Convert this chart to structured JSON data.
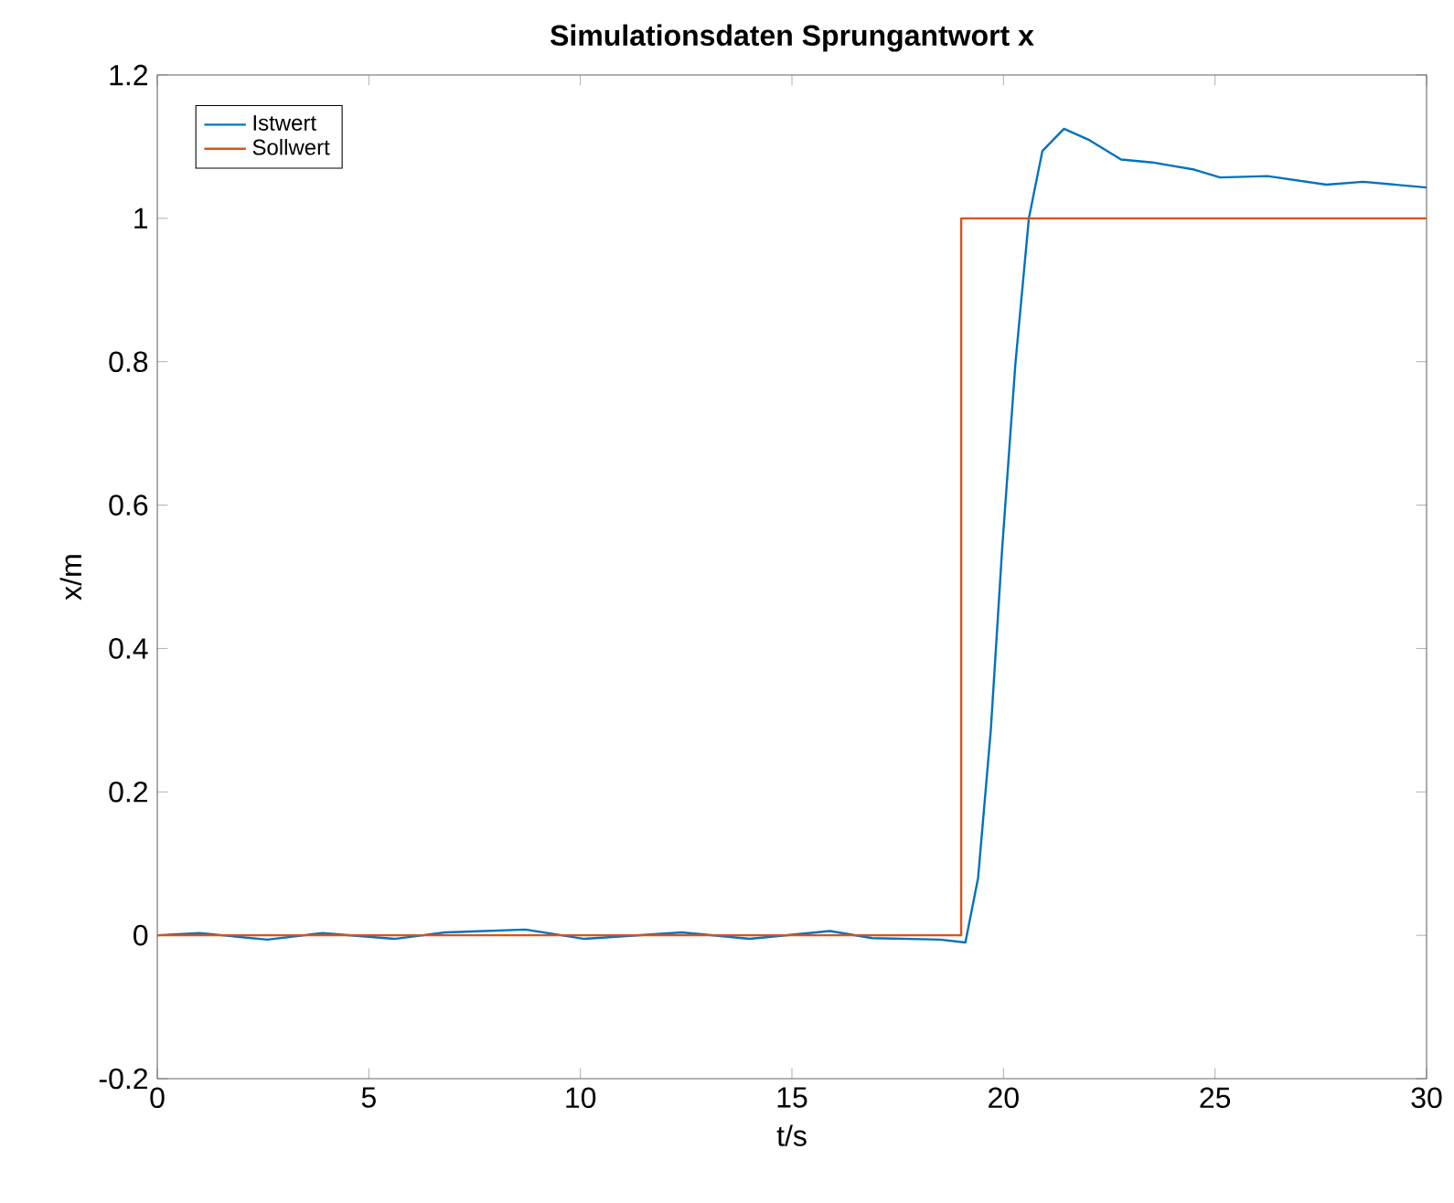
{
  "chart_data": {
    "type": "line",
    "title": "Simulationsdaten Sprungantwort x",
    "xlabel": "t/s",
    "ylabel": "x/m",
    "xlim": [
      0,
      30
    ],
    "ylim": [
      -0.2,
      1.2
    ],
    "xticks": [
      0,
      5,
      10,
      15,
      20,
      25,
      30
    ],
    "yticks": [
      {
        "value": -0.2,
        "label": "-0.2"
      },
      0,
      0.2,
      0.4,
      0.6,
      0.8,
      1,
      1.2
    ],
    "grid": false,
    "legend": "top left",
    "marker": "none",
    "line_style": "solid",
    "series": [
      {
        "name": "Istwert",
        "color": "#0072bd",
        "x": [
          0,
          1.0,
          2.6,
          3.9,
          5.6,
          6.8,
          8.7,
          10.1,
          12.4,
          14.0,
          15.9,
          16.9,
          18.5,
          19.1,
          19.4,
          19.7,
          19.97,
          20.28,
          20.6,
          20.92,
          21.43,
          22.0,
          22.78,
          23.52,
          24.51,
          25.12,
          26.24,
          27.63,
          28.5,
          30
        ],
        "values": [
          0,
          0.003,
          -0.006,
          0.003,
          -0.005,
          0.004,
          0.008,
          -0.005,
          0.004,
          -0.005,
          0.006,
          -0.004,
          -0.006,
          -0.01,
          0.08,
          0.286,
          0.54,
          0.796,
          1.0,
          1.094,
          1.125,
          1.11,
          1.082,
          1.078,
          1.068,
          1.057,
          1.059,
          1.047,
          1.051,
          1.043
        ]
      },
      {
        "name": "Sollwert",
        "color": "#d95319",
        "type": "step",
        "x": [
          0,
          19,
          30
        ],
        "values": [
          0,
          1,
          1
        ]
      }
    ]
  }
}
